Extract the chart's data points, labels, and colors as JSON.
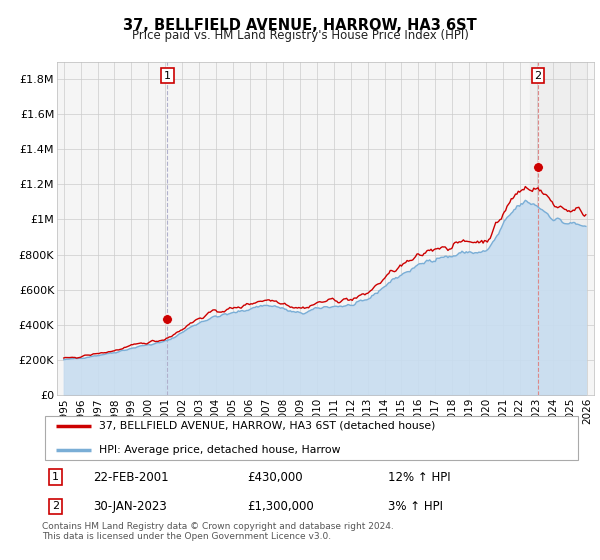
{
  "title": "37, BELLFIELD AVENUE, HARROW, HA3 6ST",
  "subtitle": "Price paid vs. HM Land Registry's House Price Index (HPI)",
  "background_color": "#f5f5f5",
  "grid_color": "#cccccc",
  "hpi_color": "#7aaed6",
  "hpi_fill_color": "#c8ddf0",
  "price_color": "#cc0000",
  "vline1_color": "#aaaacc",
  "vline2_color": "#dd6666",
  "legend_label_price": "37, BELLFIELD AVENUE, HARROW, HA3 6ST (detached house)",
  "legend_label_hpi": "HPI: Average price, detached house, Harrow",
  "sale1_x": 2001.13,
  "sale1_y": 430000,
  "sale2_x": 2023.08,
  "sale2_y": 1300000,
  "ylim": [
    0,
    1900000
  ],
  "yticks": [
    0,
    200000,
    400000,
    600000,
    800000,
    1000000,
    1200000,
    1400000,
    1600000,
    1800000
  ],
  "ytick_labels": [
    "£0",
    "£200K",
    "£400K",
    "£600K",
    "£800K",
    "£1M",
    "£1.2M",
    "£1.4M",
    "£1.6M",
    "£1.8M"
  ],
  "xlim_left": 1994.6,
  "xlim_right": 2026.4,
  "xtick_years": [
    1995,
    1996,
    1997,
    1998,
    1999,
    2000,
    2001,
    2002,
    2003,
    2004,
    2005,
    2006,
    2007,
    2008,
    2009,
    2010,
    2011,
    2012,
    2013,
    2014,
    2015,
    2016,
    2017,
    2018,
    2019,
    2020,
    2021,
    2022,
    2023,
    2024,
    2025,
    2026
  ],
  "footer": "Contains HM Land Registry data © Crown copyright and database right 2024.\nThis data is licensed under the Open Government Licence v3.0.",
  "hpi_base_values": [
    200000,
    210000,
    225000,
    242000,
    265000,
    285000,
    305000,
    355000,
    410000,
    445000,
    465000,
    490000,
    510000,
    490000,
    465000,
    490000,
    505000,
    510000,
    545000,
    620000,
    685000,
    735000,
    780000,
    790000,
    815000,
    820000,
    960000,
    1080000,
    1080000,
    1010000,
    975000,
    960000
  ],
  "price_base_values": [
    207000,
    218000,
    235000,
    252000,
    278000,
    300000,
    320000,
    375000,
    435000,
    475000,
    490000,
    520000,
    540000,
    525000,
    495000,
    522000,
    540000,
    545000,
    583000,
    665000,
    735000,
    785000,
    840000,
    848000,
    878000,
    885000,
    1030000,
    1160000,
    1175000,
    1095000,
    1055000,
    1035000
  ],
  "base_years": [
    1995,
    1996,
    1997,
    1998,
    1999,
    2000,
    2001,
    2002,
    2003,
    2004,
    2005,
    2006,
    2007,
    2008,
    2009,
    2010,
    2011,
    2012,
    2013,
    2014,
    2015,
    2016,
    2017,
    2018,
    2019,
    2020,
    2021,
    2022,
    2023,
    2024,
    2025,
    2026
  ]
}
